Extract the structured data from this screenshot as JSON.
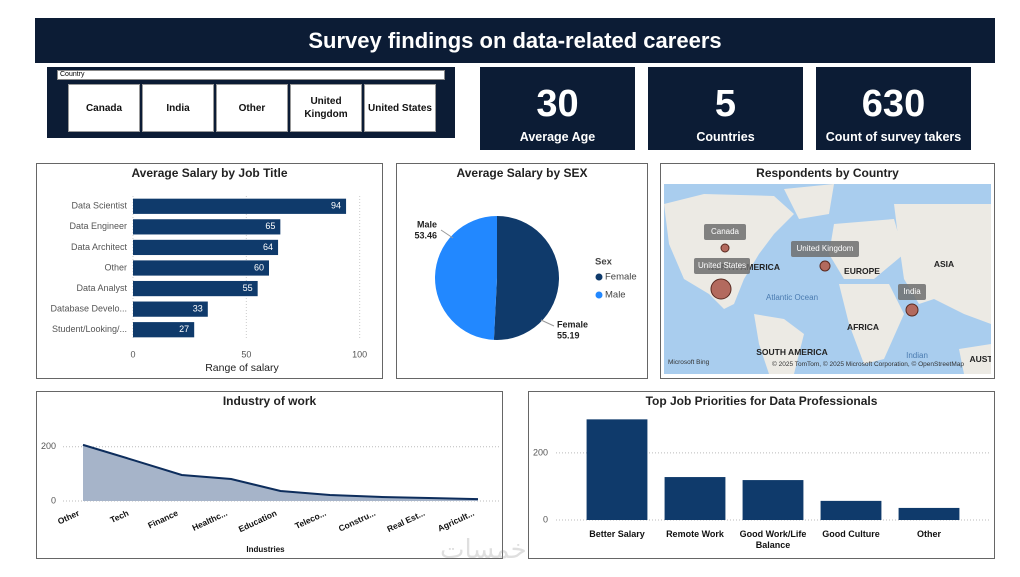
{
  "header": {
    "title": "Survey findings on data-related careers"
  },
  "slicer": {
    "label": "Country",
    "options": [
      "Canada",
      "India",
      "Other",
      "United Kingdom",
      "United States"
    ]
  },
  "kpis": [
    {
      "value": 30,
      "label": "Average Age"
    },
    {
      "value": 5,
      "label": "Countries"
    },
    {
      "value": 630,
      "label": "Count of survey takers"
    }
  ],
  "chart_data": [
    {
      "type": "bar",
      "orientation": "horizontal",
      "title": "Average Salary by Job Title",
      "categories": [
        "Data Scientist",
        "Data Engineer",
        "Data Architect",
        "Other",
        "Data Analyst",
        "Database Develo...",
        "Student/Looking/..."
      ],
      "values": [
        94,
        65,
        64,
        60,
        55,
        33,
        27
      ],
      "color": "#0f3a6b",
      "xlim": [
        0,
        105
      ],
      "xticks": [
        0,
        50,
        100
      ],
      "xlabel": "Range of salary",
      "grid": true
    },
    {
      "type": "pie",
      "title": "Average Salary by SEX",
      "categories": [
        "Female",
        "Male"
      ],
      "values": [
        55.19,
        53.46
      ],
      "colors": [
        "#0f3a6b",
        "#2288ff"
      ],
      "legend_title": "Sex",
      "legend": "right"
    },
    {
      "type": "area",
      "title": "Industry of work",
      "categories": [
        "Other",
        "Tech",
        "Finance",
        "Healthc...",
        "Education",
        "Teleco...",
        "Constru...",
        "Real Est...",
        "Agricult..."
      ],
      "values": [
        207,
        152,
        96,
        81,
        37,
        22,
        15,
        11,
        7
      ],
      "color": "#0d2d5c",
      "fill": "#a6b4c9",
      "ylim": [
        0,
        225
      ],
      "yticks": [
        0,
        200
      ],
      "xlabel": "Industries",
      "grid": true
    },
    {
      "type": "bar",
      "title": "Top Job Priorities for Data Professionals",
      "categories": [
        "Better Salary",
        "Remote Work",
        "Good Work/Life Balance",
        "Good Culture",
        "Other"
      ],
      "values": [
        300,
        128,
        119,
        57,
        36
      ],
      "color": "#0f3a6b",
      "ylim": [
        0,
        310
      ],
      "yticks": [
        0,
        200
      ],
      "grid": true
    }
  ],
  "map": {
    "title": "Respondents by Country",
    "points": [
      "Canada",
      "United States",
      "United Kingdom",
      "India"
    ],
    "labels": [
      "NORTH AMERICA",
      "EUROPE",
      "ASIA",
      "AFRICA",
      "SOUTH AMERICA",
      "Atlantic Ocean",
      "Indian",
      "AUSTRALIA"
    ],
    "brand": "Microsoft Bing",
    "attribution": "© 2025 TomTom, © 2025 Microsoft Corporation, © OpenStreetMap"
  },
  "watermark": "خمسات"
}
